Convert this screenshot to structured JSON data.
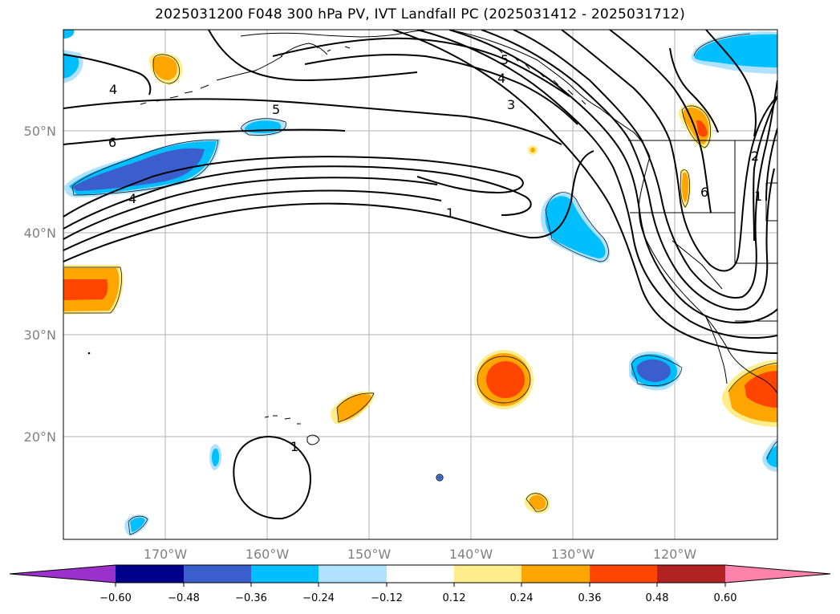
{
  "title": "2025031200 F048 300 hPa PV, IVT Landfall PC (2025031412 - 2025031712)",
  "map": {
    "lat_ticks": [
      "50°N",
      "40°N",
      "30°N",
      "20°N"
    ],
    "lon_ticks": [
      "170°W",
      "160°W",
      "150°W",
      "140°W",
      "130°W",
      "120°W"
    ],
    "contour_labels": [
      "4",
      "5",
      "6",
      "4",
      "5",
      "4",
      "3",
      "1",
      "1",
      "2",
      "1",
      "6"
    ]
  },
  "colorbar": {
    "colors": [
      "#9b30cd",
      "#00008b",
      "#3a5fcd",
      "#00bfff",
      "#b0e2ff",
      "#ffffff",
      "#ffec8b",
      "#ffa500",
      "#ff4500",
      "#b22222",
      "#ff82ab"
    ],
    "tick_labels": [
      "−0.60",
      "−0.48",
      "−0.36",
      "−0.24",
      "−0.12",
      "0.12",
      "0.24",
      "0.36",
      "0.48",
      "0.60"
    ]
  }
}
